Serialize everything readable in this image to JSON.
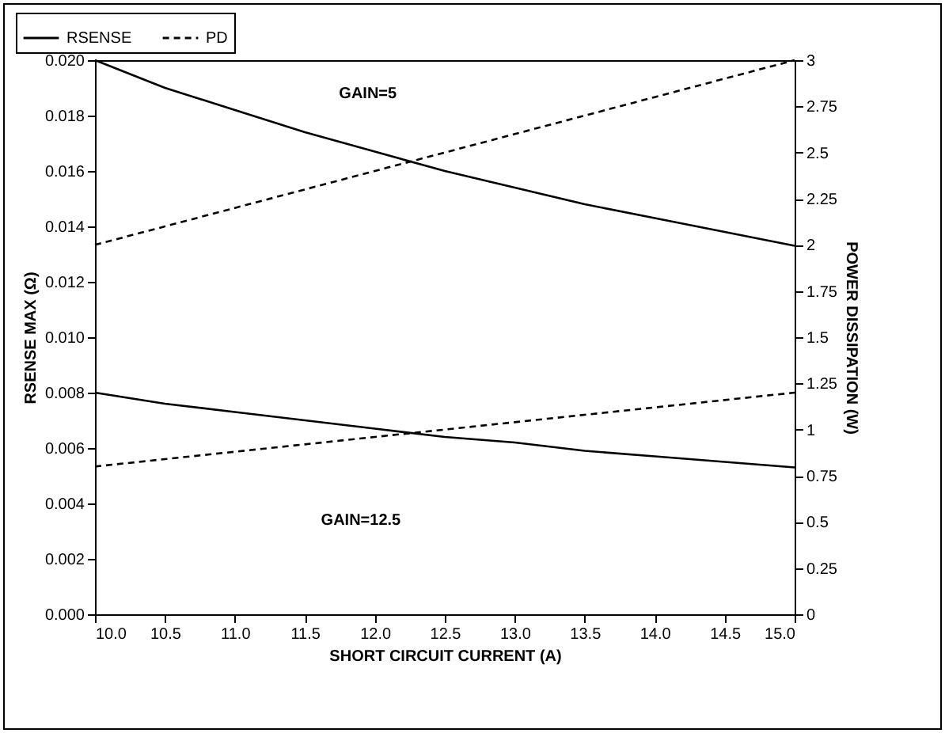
{
  "chart_data": {
    "type": "line",
    "xlabel": "SHORT CIRCUIT CURRENT (A)",
    "ylabel": "RSENSE MAX (Ω)",
    "y2label": "POWER DISSIPATION (W)",
    "x": [
      10,
      10.5,
      11,
      11.5,
      12,
      12.5,
      13,
      13.5,
      14,
      14.5,
      15
    ],
    "series": [
      {
        "name": "RSENSE",
        "color": "#000000",
        "line_style": "solid",
        "values": [
          0.02,
          0.019,
          0.0182,
          0.0174,
          0.0167,
          0.016,
          0.0154,
          0.0148,
          0.0143,
          0.0138,
          0.0133
        ]
      },
      {
        "name": "PD",
        "color": "#000000",
        "line_style": "dashed",
        "axis": "y2",
        "values": [
          2,
          2.1,
          2.2,
          2.3,
          2.4,
          2.5,
          2.6,
          2.7,
          2.8,
          2.9,
          3
        ]
      },
      {
        "color": "#000000",
        "line_style": "solid",
        "values": [
          0.008,
          0.0076,
          0.0073,
          0.007,
          0.0067,
          0.0064,
          0.0062,
          0.0059,
          0.0057,
          0.0055,
          0.0053
        ]
      },
      {
        "color": "#000000",
        "line_style": "dashed",
        "axis": "y2",
        "values": [
          0.8,
          0.84,
          0.88,
          0.92,
          0.96,
          1,
          1.04,
          1.08,
          1.12,
          1.16,
          1.2
        ]
      }
    ],
    "annotations": [
      "GAIN=5",
      "GAIN=12.5"
    ],
    "xlim": [
      10,
      15
    ],
    "xticks": [
      {
        "value": 10,
        "label": "10.0"
      },
      {
        "value": 10.5,
        "label": "10.5"
      },
      {
        "value": 11,
        "label": "11.0"
      },
      {
        "value": 11.5,
        "label": "11.5"
      },
      {
        "value": 12,
        "label": "12.0"
      },
      {
        "value": 12.5,
        "label": "12.5"
      },
      {
        "value": 13,
        "label": "13.0"
      },
      {
        "value": 13.5,
        "label": "13.5"
      },
      {
        "value": 14,
        "label": "14.0"
      },
      {
        "value": 14.5,
        "label": "14.5"
      },
      {
        "value": 15,
        "label": "15.0"
      }
    ],
    "ylim": [
      0,
      0.02
    ],
    "yticks": [
      {
        "value": 0,
        "label": "0.000"
      },
      {
        "value": 0.002,
        "label": "0.002"
      },
      {
        "value": 0.004,
        "label": "0.004"
      },
      {
        "value": 0.006,
        "label": "0.006"
      },
      {
        "value": 0.008,
        "label": "0.008"
      },
      {
        "value": 0.01,
        "label": "0.010"
      },
      {
        "value": 0.012,
        "label": "0.012"
      },
      {
        "value": 0.014,
        "label": "0.014"
      },
      {
        "value": 0.016,
        "label": "0.016"
      },
      {
        "value": 0.018,
        "label": "0.018"
      },
      {
        "value": 0.02,
        "label": "0.020"
      }
    ],
    "y2lim": [
      0,
      3
    ],
    "y2ticks": [
      0,
      0.25,
      0.5,
      0.75,
      1,
      1.25,
      1.5,
      1.75,
      2,
      2.25,
      2.5,
      2.75,
      3
    ],
    "grid": false,
    "legend": "top left",
    "marker": "none"
  }
}
